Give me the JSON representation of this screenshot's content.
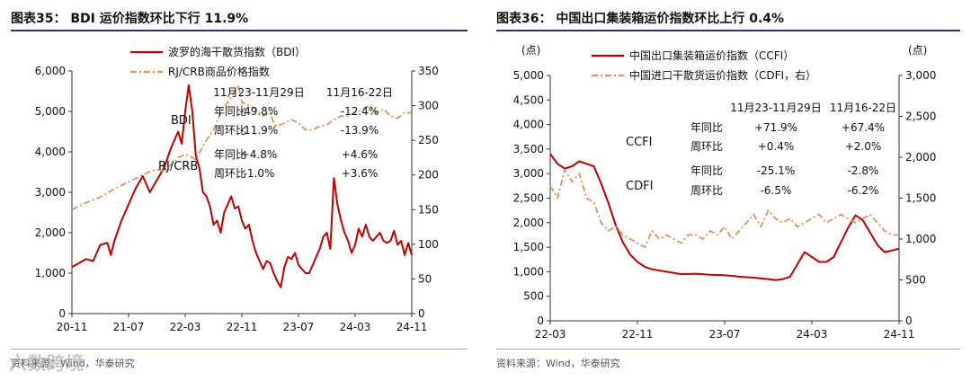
{
  "colors": {
    "red": "#c00000",
    "orange": "#e0935a",
    "rule": "#1f3864",
    "axis": "#333333"
  },
  "left": {
    "title": "图表35： BDI 运价指数环比下行 11.9%",
    "source": "资料来源：Wind，华泰研究",
    "watermark": "六数跨境",
    "chart_data": {
      "type": "line",
      "title": "BDI 运价指数环比下行 11.9%",
      "legend": [
        "波罗的海干散货指数（BDI）",
        "RJ/CRB商品价格指数"
      ],
      "x_ticks": [
        "20-11",
        "21-07",
        "22-03",
        "22-11",
        "23-07",
        "24-03",
        "24-11"
      ],
      "y_left": {
        "min": 0,
        "max": 6000,
        "ticks": [
          "0",
          "1,000",
          "2,000",
          "3,000",
          "4,000",
          "5,000",
          "6,000"
        ]
      },
      "y_right": {
        "min": 0,
        "max": 350,
        "ticks": [
          "0",
          "50",
          "100",
          "150",
          "200",
          "250",
          "300",
          "350"
        ]
      },
      "series": [
        {
          "name": "波罗的海干散货指数（BDI）",
          "axis": "left",
          "style": "solid",
          "points": [
            [
              0,
              1150
            ],
            [
              2,
              1250
            ],
            [
              4,
              1350
            ],
            [
              6,
              1300
            ],
            [
              8,
              1700
            ],
            [
              10,
              1750
            ],
            [
              11,
              1450
            ],
            [
              12,
              1800
            ],
            [
              14,
              2300
            ],
            [
              16,
              2700
            ],
            [
              18,
              3100
            ],
            [
              20,
              3400
            ],
            [
              22,
              3000
            ],
            [
              24,
              3300
            ],
            [
              26,
              3600
            ],
            [
              28,
              4100
            ],
            [
              30,
              4500
            ],
            [
              31,
              4200
            ],
            [
              32,
              5000
            ],
            [
              33,
              5650
            ],
            [
              34,
              5000
            ],
            [
              35,
              3900
            ],
            [
              36,
              3600
            ],
            [
              37,
              3000
            ],
            [
              38,
              2900
            ],
            [
              39,
              2650
            ],
            [
              40,
              2200
            ],
            [
              41,
              2300
            ],
            [
              42,
              2000
            ],
            [
              43,
              2500
            ],
            [
              44,
              2700
            ],
            [
              45,
              2900
            ],
            [
              46,
              2600
            ],
            [
              47,
              2650
            ],
            [
              48,
              2300
            ],
            [
              49,
              2100
            ],
            [
              50,
              2200
            ],
            [
              51,
              1800
            ],
            [
              52,
              1500
            ],
            [
              53,
              1300
            ],
            [
              54,
              1100
            ],
            [
              55,
              1300
            ],
            [
              56,
              1250
            ],
            [
              57,
              1000
            ],
            [
              58,
              800
            ],
            [
              59,
              650
            ],
            [
              60,
              1150
            ],
            [
              61,
              1400
            ],
            [
              62,
              1350
            ],
            [
              63,
              1500
            ],
            [
              64,
              1200
            ],
            [
              65,
              1100
            ],
            [
              66,
              1000
            ],
            [
              67,
              1000
            ],
            [
              68,
              1200
            ],
            [
              69,
              1400
            ],
            [
              70,
              1600
            ],
            [
              71,
              1900
            ],
            [
              72,
              2000
            ],
            [
              73,
              1600
            ],
            [
              74,
              3350
            ],
            [
              75,
              2700
            ],
            [
              76,
              2300
            ],
            [
              77,
              2000
            ],
            [
              78,
              1800
            ],
            [
              79,
              1500
            ],
            [
              80,
              1700
            ],
            [
              81,
              2100
            ],
            [
              82,
              1900
            ],
            [
              83,
              2200
            ],
            [
              84,
              1900
            ],
            [
              85,
              1800
            ],
            [
              86,
              1900
            ],
            [
              87,
              2000
            ],
            [
              88,
              1800
            ],
            [
              89,
              1750
            ],
            [
              90,
              1800
            ],
            [
              91,
              2050
            ],
            [
              92,
              1700
            ],
            [
              93,
              1800
            ],
            [
              94,
              1450
            ],
            [
              95,
              1750
            ],
            [
              96,
              1450
            ]
          ]
        },
        {
          "name": "RJ/CRB商品价格指数",
          "axis": "right",
          "style": "dashdot",
          "points": [
            [
              0,
              150
            ],
            [
              4,
              160
            ],
            [
              8,
              168
            ],
            [
              12,
              180
            ],
            [
              16,
              190
            ],
            [
              20,
              200
            ],
            [
              22,
              205
            ],
            [
              24,
              208
            ],
            [
              26,
              205
            ],
            [
              28,
              215
            ],
            [
              30,
              225
            ],
            [
              32,
              230
            ],
            [
              34,
              225
            ],
            [
              35,
              222
            ],
            [
              36,
              232
            ],
            [
              38,
              250
            ],
            [
              40,
              265
            ],
            [
              42,
              290
            ],
            [
              44,
              305
            ],
            [
              46,
              320
            ],
            [
              47,
              330
            ],
            [
              48,
              305
            ],
            [
              50,
              300
            ],
            [
              52,
              295
            ],
            [
              54,
              285
            ],
            [
              56,
              290
            ],
            [
              57,
              275
            ],
            [
              58,
              270
            ],
            [
              60,
              275
            ],
            [
              62,
              280
            ],
            [
              64,
              275
            ],
            [
              66,
              265
            ],
            [
              68,
              265
            ],
            [
              70,
              270
            ],
            [
              72,
              272
            ],
            [
              74,
              280
            ],
            [
              76,
              285
            ],
            [
              78,
              285
            ],
            [
              80,
              290
            ],
            [
              82,
              295
            ],
            [
              84,
              300
            ],
            [
              86,
              290
            ],
            [
              88,
              295
            ],
            [
              90,
              285
            ],
            [
              92,
              282
            ],
            [
              94,
              290
            ],
            [
              96,
              290
            ]
          ]
        }
      ],
      "annotations": {
        "series_labels": {
          "bdi": "BDI",
          "crb": "RJ/CRB"
        },
        "periods": [
          "11月23-11月29日",
          "11月16-22日"
        ],
        "rows": [
          {
            "label": "年同比",
            "v1": "-49.8%",
            "v2": "-12.4%"
          },
          {
            "label": "周环比",
            "v1": "-11.9%",
            "v2": "-13.9%"
          },
          {
            "label": "年同比",
            "v1": "+4.8%",
            "v2": "+4.6%"
          },
          {
            "label": "周环比",
            "v1": "-1.0%",
            "v2": "+3.6%"
          }
        ]
      }
    }
  },
  "right": {
    "title": "图表36： 中国出口集装箱运价指数环比上行 0.4%",
    "source": "资料来源：Wind，华泰研究",
    "chart_data": {
      "type": "line",
      "title": "中国出口集装箱运价指数环比上行 0.4%",
      "unit_left": "(点)",
      "unit_right": "(点)",
      "legend": [
        "中国出口集装箱运价指数（CCFI）",
        "中国进口干散货运价指数（CDFI，右）"
      ],
      "x_ticks": [
        "22-03",
        "22-11",
        "23-07",
        "24-03",
        "24-11"
      ],
      "y_left": {
        "min": 0,
        "max": 5000,
        "ticks": [
          "0",
          "500",
          "1,000",
          "1,500",
          "2,000",
          "2,500",
          "3,000",
          "3,500",
          "4,000",
          "4,500",
          "5,000"
        ]
      },
      "y_right": {
        "min": 0,
        "max": 3000,
        "ticks": [
          "0",
          "500",
          "1,000",
          "1,500",
          "2,000",
          "2,500",
          "3,000"
        ]
      },
      "series": [
        {
          "name": "中国出口集装箱运价指数（CCFI）",
          "axis": "left",
          "style": "solid",
          "points": [
            [
              0,
              3400
            ],
            [
              1,
              3200
            ],
            [
              2,
              3100
            ],
            [
              3,
              3150
            ],
            [
              4,
              3250
            ],
            [
              5,
              3200
            ],
            [
              6,
              3150
            ],
            [
              7,
              2800
            ],
            [
              8,
              2400
            ],
            [
              9,
              1950
            ],
            [
              10,
              1600
            ],
            [
              11,
              1350
            ],
            [
              12,
              1200
            ],
            [
              13,
              1100
            ],
            [
              14,
              1050
            ],
            [
              16,
              1000
            ],
            [
              18,
              950
            ],
            [
              20,
              960
            ],
            [
              22,
              940
            ],
            [
              24,
              930
            ],
            [
              26,
              900
            ],
            [
              28,
              880
            ],
            [
              30,
              850
            ],
            [
              31,
              830
            ],
            [
              32,
              850
            ],
            [
              33,
              900
            ],
            [
              34,
              1150
            ],
            [
              35,
              1400
            ],
            [
              36,
              1300
            ],
            [
              37,
              1200
            ],
            [
              38,
              1200
            ],
            [
              39,
              1300
            ],
            [
              40,
              1600
            ],
            [
              41,
              1900
            ],
            [
              42,
              2150
            ],
            [
              43,
              2050
            ],
            [
              44,
              1800
            ],
            [
              45,
              1550
            ],
            [
              46,
              1400
            ],
            [
              47,
              1430
            ],
            [
              48,
              1470
            ]
          ]
        },
        {
          "name": "中国进口干散货运价指数（CDFI，右）",
          "axis": "right",
          "style": "dashdot",
          "points": [
            [
              0,
              1650
            ],
            [
              1,
              1500
            ],
            [
              2,
              1850
            ],
            [
              3,
              1700
            ],
            [
              4,
              1800
            ],
            [
              5,
              1500
            ],
            [
              6,
              1450
            ],
            [
              7,
              1200
            ],
            [
              8,
              1100
            ],
            [
              9,
              1150
            ],
            [
              10,
              1050
            ],
            [
              11,
              1000
            ],
            [
              12,
              950
            ],
            [
              13,
              900
            ],
            [
              14,
              1100
            ],
            [
              15,
              1000
            ],
            [
              16,
              1050
            ],
            [
              17,
              1000
            ],
            [
              18,
              950
            ],
            [
              19,
              1050
            ],
            [
              20,
              1050
            ],
            [
              21,
              1000
            ],
            [
              22,
              1100
            ],
            [
              23,
              1050
            ],
            [
              24,
              1150
            ],
            [
              25,
              1000
            ],
            [
              26,
              1100
            ],
            [
              27,
              1200
            ],
            [
              28,
              1300
            ],
            [
              29,
              1150
            ],
            [
              30,
              1350
            ],
            [
              31,
              1250
            ],
            [
              32,
              1200
            ],
            [
              33,
              1250
            ],
            [
              34,
              1150
            ],
            [
              35,
              1200
            ],
            [
              36,
              1250
            ],
            [
              37,
              1300
            ],
            [
              38,
              1200
            ],
            [
              39,
              1250
            ],
            [
              40,
              1300
            ],
            [
              41,
              1250
            ],
            [
              42,
              1200
            ],
            [
              43,
              1250
            ],
            [
              44,
              1300
            ],
            [
              45,
              1200
            ],
            [
              46,
              1100
            ],
            [
              47,
              1050
            ],
            [
              48,
              1050
            ]
          ]
        }
      ],
      "annotations": {
        "series_labels": {
          "ccfi": "CCFI",
          "cdfi": "CDFI"
        },
        "periods": [
          "11月23-11月29日",
          "11月16-22日"
        ],
        "rows": [
          {
            "label": "年同比",
            "v1": "+71.9%",
            "v2": "+67.4%"
          },
          {
            "label": "周环比",
            "v1": "+0.4%",
            "v2": "+2.0%"
          },
          {
            "label": "年同比",
            "v1": "-25.1%",
            "v2": "-2.8%"
          },
          {
            "label": "周环比",
            "v1": "-6.5%",
            "v2": "-6.2%"
          }
        ]
      }
    }
  }
}
